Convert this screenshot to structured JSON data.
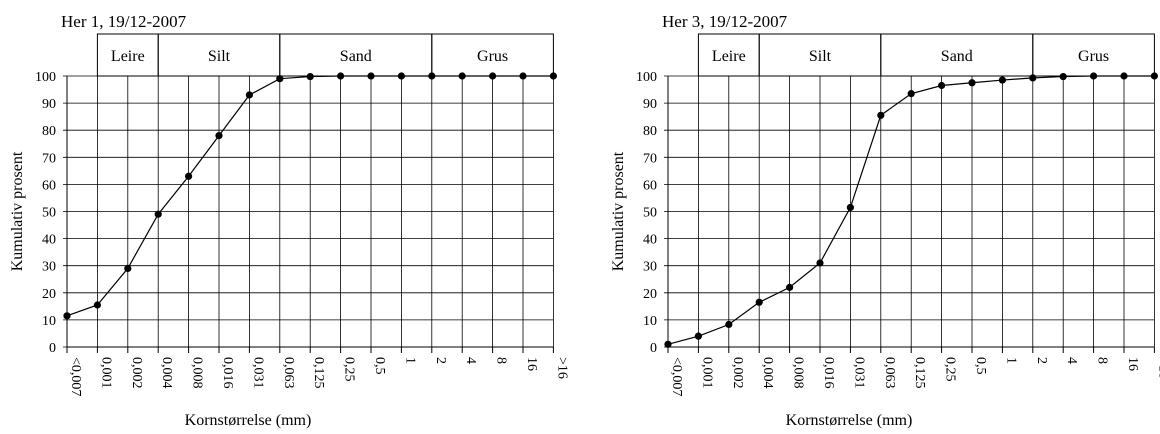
{
  "chart_data": [
    {
      "type": "line",
      "title": "Her 1, 19/12-2007",
      "xlabel": "Kornstørrelse (mm)",
      "ylabel": "Kumulativ prosent",
      "categories": [
        "<0,007",
        "0,001",
        "0,002",
        "0,004",
        "0,008",
        "0,016",
        "0,031",
        "0,063",
        "0,125",
        "0,25",
        "0,5",
        "1",
        "2",
        "4",
        "8",
        "16",
        ">16"
      ],
      "yticks": [
        "0",
        "10",
        "20",
        "30",
        "40",
        "50",
        "60",
        "70",
        "80",
        "90",
        "100"
      ],
      "ylim": [
        0,
        100
      ],
      "grid": true,
      "bands": [
        {
          "label": "Leire",
          "from": 1,
          "to": 3
        },
        {
          "label": "Silt",
          "from": 3,
          "to": 7
        },
        {
          "label": "Sand",
          "from": 7,
          "to": 12
        },
        {
          "label": "Grus",
          "from": 12,
          "to": 16
        }
      ],
      "series": [
        {
          "values": [
            11.5,
            15.5,
            29,
            49,
            63,
            78,
            93,
            99,
            99.8,
            100,
            100,
            100,
            100,
            100,
            100,
            100,
            100
          ]
        }
      ]
    },
    {
      "type": "line",
      "title": "Her 3, 19/12-2007",
      "xlabel": "Kornstørrelse (mm)",
      "ylabel": "Kumulativ prosent",
      "categories": [
        "<0,007",
        "0,001",
        "0,002",
        "0,004",
        "0,008",
        "0,016",
        "0,031",
        "0,063",
        "0,125",
        "0,25",
        "0,5",
        "1",
        "2",
        "4",
        "8",
        "16",
        ">16"
      ],
      "yticks": [
        "0",
        "10",
        "20",
        "30",
        "40",
        "50",
        "60",
        "70",
        "80",
        "90",
        "100"
      ],
      "ylim": [
        0,
        100
      ],
      "grid": true,
      "bands": [
        {
          "label": "Leire",
          "from": 1,
          "to": 3
        },
        {
          "label": "Silt",
          "from": 3,
          "to": 7
        },
        {
          "label": "Sand",
          "from": 7,
          "to": 12
        },
        {
          "label": "Grus",
          "from": 12,
          "to": 16
        }
      ],
      "series": [
        {
          "values": [
            1,
            4,
            8.3,
            16.5,
            22,
            31,
            51.5,
            85.5,
            93.5,
            96.5,
            97.5,
            98.5,
            99.3,
            99.8,
            100,
            100,
            100
          ]
        }
      ]
    }
  ]
}
